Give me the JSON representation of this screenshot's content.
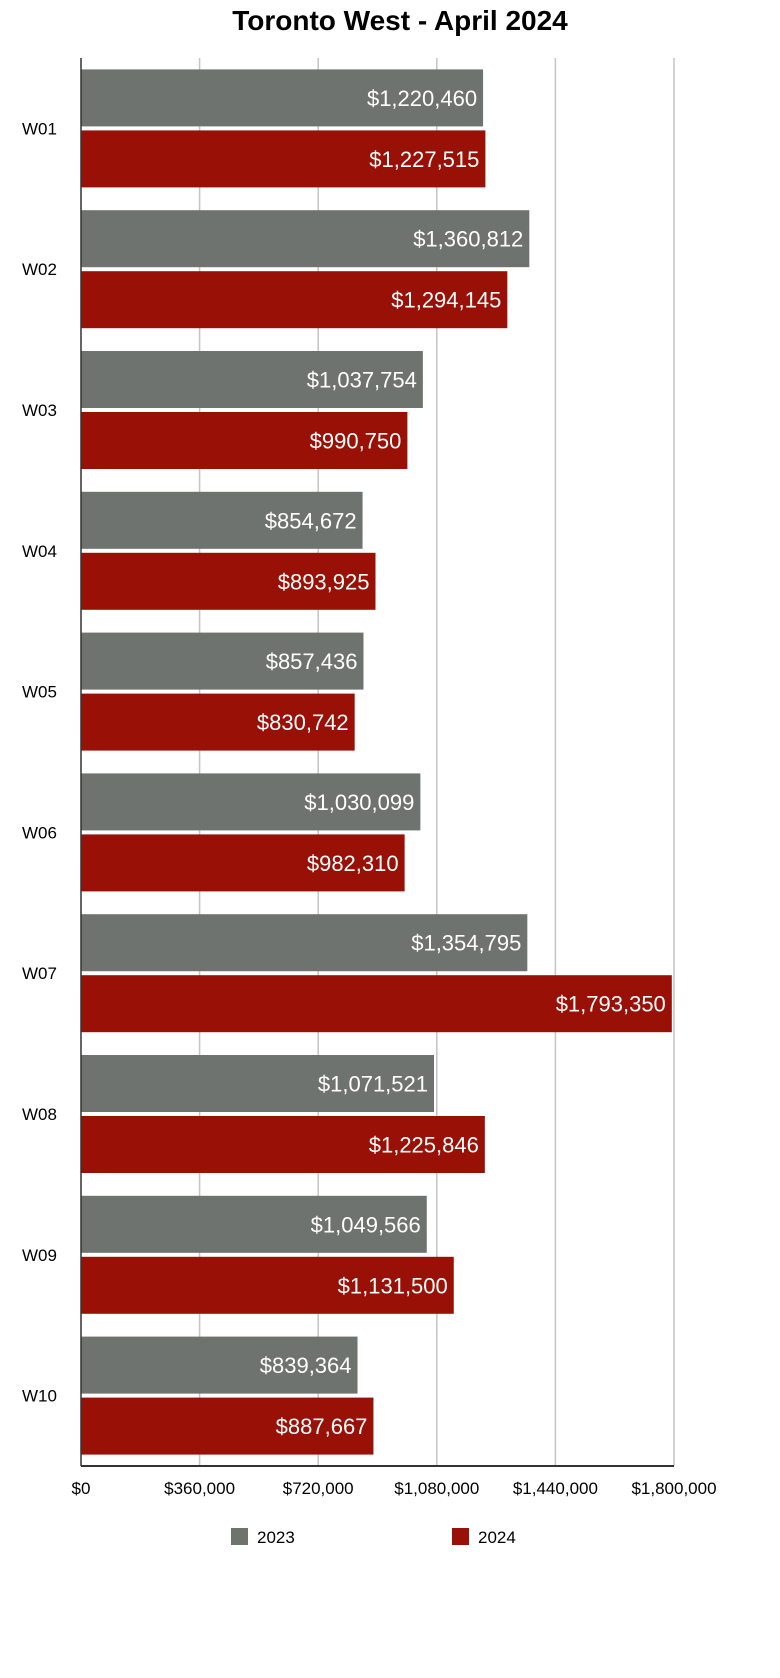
{
  "chart_data": {
    "type": "bar",
    "orientation": "horizontal",
    "title": "Toronto West - April 2024",
    "categories": [
      "W01",
      "W02",
      "W03",
      "W04",
      "W05",
      "W06",
      "W07",
      "W08",
      "W09",
      "W10"
    ],
    "series": [
      {
        "name": "2023",
        "color": "#6e7370",
        "values": [
          1220460,
          1360812,
          1037754,
          854672,
          857436,
          1030099,
          1354795,
          1071521,
          1049566,
          839364
        ],
        "labels": [
          "$1,220,460",
          "$1,360,812",
          "$1,037,754",
          "$854,672",
          "$857,436",
          "$1,030,099",
          "$1,354,795",
          "$1,071,521",
          "$1,049,566",
          "$839,364"
        ]
      },
      {
        "name": "2024",
        "color": "#991106",
        "values": [
          1227515,
          1294145,
          990750,
          893925,
          830742,
          982310,
          1793350,
          1225846,
          1131500,
          887667
        ],
        "labels": [
          "$1,227,515",
          "$1,294,145",
          "$990,750",
          "$893,925",
          "$830,742",
          "$982,310",
          "$1,793,350",
          "$1,225,846",
          "$1,131,500",
          "$887,667"
        ]
      }
    ],
    "xlim": [
      0,
      1800000
    ],
    "xticks": [
      "$0",
      "$360,000",
      "$720,000",
      "$1,080,000",
      "$1,440,000",
      "$1,800,000"
    ],
    "xlabel": "",
    "ylabel": "",
    "grid": true,
    "legend_position": "bottom"
  }
}
